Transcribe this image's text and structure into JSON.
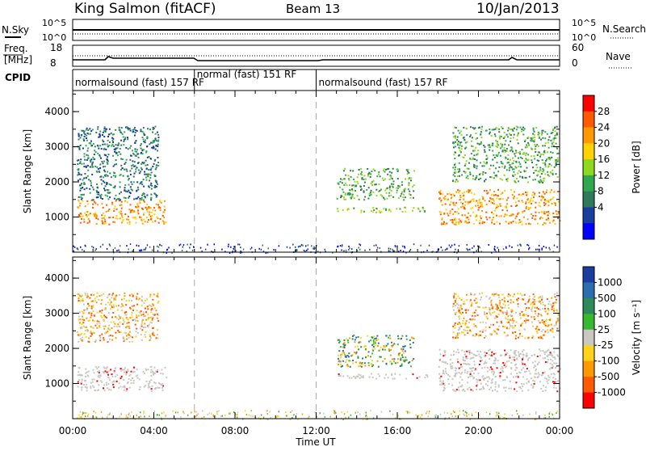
{
  "header": {
    "station": "King Salmon (fitACF)",
    "beam": "Beam 13",
    "date": "10/Jan/2013"
  },
  "top_panel": {
    "left_label": "N.Sky",
    "right_label": "N.Search",
    "left_ticks": [
      "10^5",
      "10^0"
    ],
    "right_ticks": [
      "10^5",
      "10^0"
    ]
  },
  "freq_panel": {
    "left_label_line1": "Freq.",
    "left_label_line2": "[MHz]",
    "right_label": "Nave",
    "left_ticks": [
      "18",
      "8"
    ],
    "right_ticks": [
      "60",
      "0"
    ]
  },
  "cpid": {
    "label": "CPID",
    "segments": [
      {
        "label": "normalsound (fast) 157 RF",
        "start_hour": 0,
        "end_hour": 6
      },
      {
        "label": "normal (fast) 151 RF",
        "start_hour": 6,
        "end_hour": 12
      },
      {
        "label": "normalsound (fast) 157 RF",
        "start_hour": 12,
        "end_hour": 24
      }
    ]
  },
  "x_axis": {
    "label": "Time UT",
    "ticks": [
      "00:00",
      "04:00",
      "08:00",
      "12:00",
      "16:00",
      "20:00",
      "00:00"
    ],
    "tick_hours": [
      0,
      4,
      8,
      12,
      16,
      20,
      24
    ],
    "range_hours": [
      0,
      24
    ]
  },
  "power_colorbar": {
    "label": "Power [dB]",
    "ticks": [
      "28",
      "24",
      "20",
      "16",
      "12",
      "8",
      "4"
    ],
    "colors": [
      "#ff0000",
      "#ff5a00",
      "#ff9900",
      "#ffd200",
      "#8ed81e",
      "#2fa84f",
      "#2f7a5a",
      "#1a3ea0",
      "#0000ff"
    ]
  },
  "velocity_colorbar": {
    "label": "Velocity [m s⁻¹]",
    "ticks": [
      "1000",
      "500",
      "100",
      "25",
      "-25",
      "-100",
      "-500",
      "-1000"
    ],
    "colors": [
      "#1a3ea0",
      "#2b6db0",
      "#2f8a5a",
      "#38b830",
      "#c8c8c0",
      "#ffd21e",
      "#ff9900",
      "#ff5a00",
      "#ff0000"
    ]
  },
  "chart_data": [
    {
      "type": "heatmap",
      "title": "",
      "xlabel": "Time UT",
      "ylabel": "Slant Range [km]",
      "ylim": [
        0,
        4600
      ],
      "xlim": [
        0,
        24
      ],
      "yticks": [
        "1000",
        "2000",
        "3000",
        "4000"
      ],
      "ytick_values": [
        1000,
        2000,
        3000,
        4000
      ],
      "colorbar": "Power [dB]",
      "patches": [
        {
          "x0": 0.2,
          "x1": 4.6,
          "y0": 800,
          "y1": 1500,
          "db": 22
        },
        {
          "x0": 0.2,
          "x1": 4.2,
          "y0": 1500,
          "y1": 3600,
          "db": 6
        },
        {
          "x0": 13.0,
          "x1": 16.8,
          "y0": 1500,
          "y1": 2400,
          "db": 9
        },
        {
          "x0": 13.0,
          "x1": 17.5,
          "y0": 1150,
          "y1": 1300,
          "db": 14
        },
        {
          "x0": 18.0,
          "x1": 24.0,
          "y0": 800,
          "y1": 1800,
          "db": 20
        },
        {
          "x0": 18.7,
          "x1": 23.9,
          "y0": 2000,
          "y1": 3600,
          "db": 12
        }
      ],
      "dashed_lines_hours": [
        6,
        12
      ]
    },
    {
      "type": "heatmap",
      "title": "",
      "xlabel": "Time UT",
      "ylabel": "Slant Range [km]",
      "ylim": [
        0,
        4600
      ],
      "xlim": [
        0,
        24
      ],
      "yticks": [
        "1000",
        "2000",
        "3000",
        "4000"
      ],
      "ytick_values": [
        1000,
        2000,
        3000,
        4000
      ],
      "colorbar": "Velocity [m s⁻¹]",
      "patches": [
        {
          "x0": 0.2,
          "x1": 4.6,
          "y0": 800,
          "y1": 1500,
          "vel": 0
        },
        {
          "x0": 0.2,
          "x1": 4.2,
          "y0": 2200,
          "y1": 3600,
          "vel": -300
        },
        {
          "x0": 13.0,
          "x1": 16.8,
          "y0": 1500,
          "y1": 2400,
          "vel": 200
        },
        {
          "x0": 13.0,
          "x1": 17.5,
          "y0": 1150,
          "y1": 1300,
          "vel": 0
        },
        {
          "x0": 18.0,
          "x1": 24.0,
          "y0": 800,
          "y1": 2000,
          "vel": 0
        },
        {
          "x0": 18.7,
          "x1": 23.9,
          "y0": 2300,
          "y1": 3600,
          "vel": -300
        }
      ],
      "dashed_lines_hours": [
        6,
        12
      ]
    }
  ]
}
